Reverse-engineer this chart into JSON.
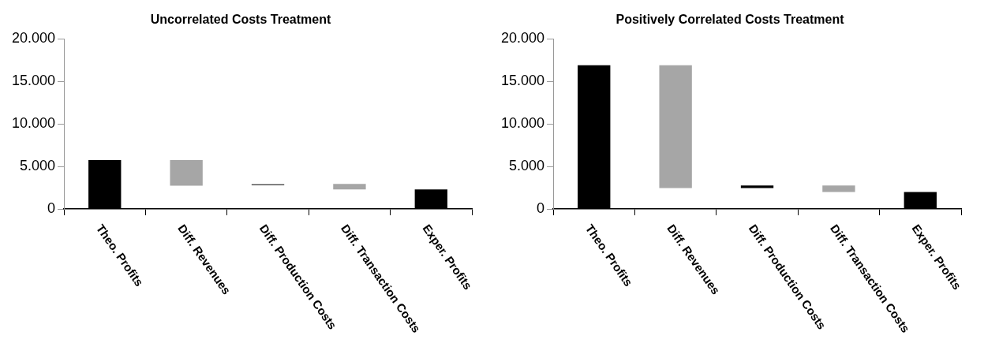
{
  "chart_data": [
    {
      "type": "bar",
      "title": "Uncorrelated Costs Treatment",
      "categories": [
        "Theo. Profits",
        "Diff. Revenues",
        "Diff. Production Costs",
        "Diff. Transaction Costs",
        "Exper. Profits"
      ],
      "values": [
        5750,
        3020,
        100,
        650,
        2300
      ],
      "base": [
        0,
        2730,
        2800,
        2300,
        0
      ],
      "colors": [
        "#000000",
        "#a6a6a6",
        "#000000",
        "#a6a6a6",
        "#000000"
      ],
      "ylim": [
        0,
        20000
      ],
      "yticks": [
        {
          "value": 0,
          "label": "0"
        },
        {
          "value": 5000,
          "label": "5.000"
        },
        {
          "value": 10000,
          "label": "10.000"
        },
        {
          "value": 15000,
          "label": "15.000"
        },
        {
          "value": 20000,
          "label": "20.000"
        }
      ],
      "grid": false,
      "legend": false
    },
    {
      "type": "bar",
      "title": "Positively Correlated Costs Treatment",
      "categories": [
        "Theo. Profits",
        "Diff. Revenues",
        "Diff. Production Costs",
        "Diff. Transaction Costs",
        "Exper. Profits"
      ],
      "values": [
        16900,
        14450,
        300,
        750,
        2000
      ],
      "base": [
        0,
        2450,
        2450,
        2000,
        0
      ],
      "colors": [
        "#000000",
        "#a6a6a6",
        "#000000",
        "#a6a6a6",
        "#000000"
      ],
      "ylim": [
        0,
        20000
      ],
      "yticks": [
        {
          "value": 0,
          "label": "0"
        },
        {
          "value": 5000,
          "label": "5.000"
        },
        {
          "value": 10000,
          "label": "10.000"
        },
        {
          "value": 15000,
          "label": "15.000"
        },
        {
          "value": 20000,
          "label": "20.000"
        }
      ],
      "grid": false,
      "legend": false
    }
  ]
}
